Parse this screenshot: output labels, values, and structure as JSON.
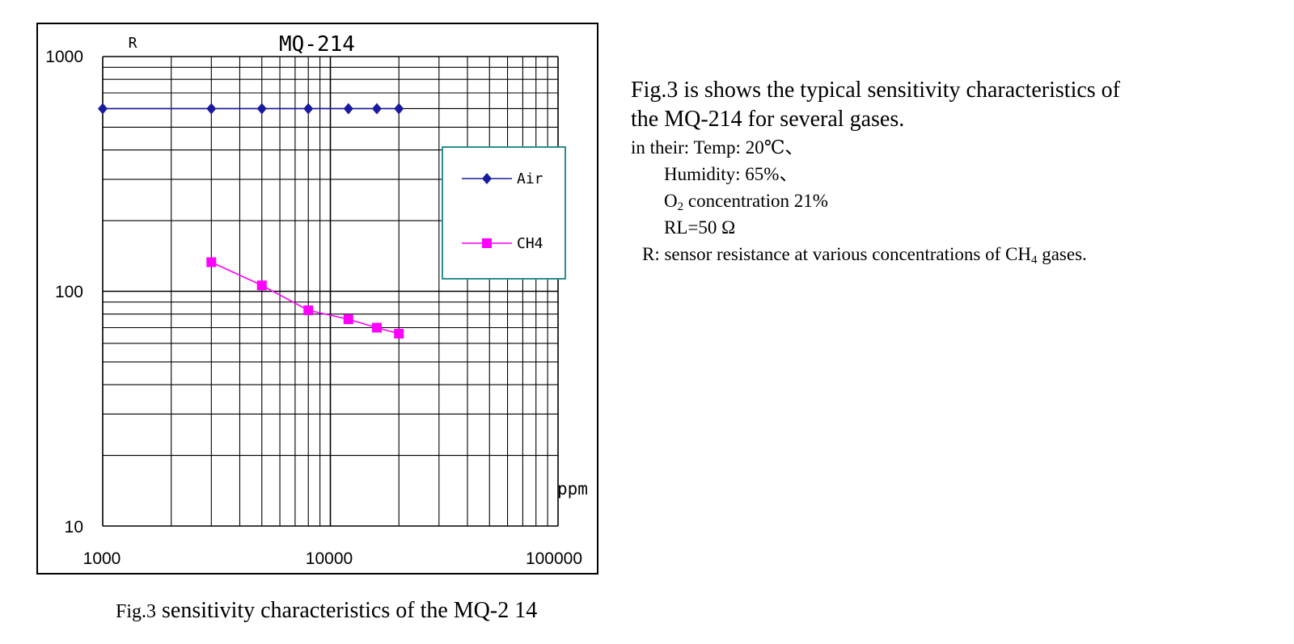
{
  "chart_data": {
    "type": "line",
    "title": "MQ-214",
    "ylabel": "R",
    "xlabel": "ppm",
    "x_scale": "log",
    "y_scale": "log",
    "xlim": [
      1000,
      100000
    ],
    "ylim": [
      10,
      1000
    ],
    "x_ticks": [
      "1000",
      "10000",
      "100000"
    ],
    "y_ticks": [
      "10",
      "100",
      "1000"
    ],
    "grid": true,
    "legend_position": "right",
    "series": [
      {
        "name": "Air",
        "color": "#1a1aa0",
        "marker": "diamond",
        "x": [
          1000,
          3000,
          5000,
          8000,
          12000,
          16000,
          20000
        ],
        "y": [
          600,
          600,
          600,
          600,
          600,
          600,
          600
        ]
      },
      {
        "name": "CH4",
        "color": "#ff00ff",
        "marker": "square",
        "x": [
          3000,
          5000,
          8000,
          12000,
          16000,
          20000
        ],
        "y": [
          133,
          106,
          83,
          76,
          70,
          66
        ]
      }
    ]
  },
  "description": {
    "line1": "Fig.3 is shows the typical sensitivity characteristics of",
    "line2": "the MQ-214 for several gases.",
    "conditions_intro": "in their: Temp: 20℃、",
    "humidity": "Humidity: 65%、",
    "o2_prefix": "O",
    "o2_sub": "2",
    "o2_suffix": " concentration 21%",
    "rl": "RL=50 Ω",
    "r_prefix": "R: sensor resistance at various concentrations of CH",
    "r_sub": "4",
    "r_suffix": " gases."
  },
  "caption": {
    "prefix": "Fig.3",
    "text": " sensitivity characteristics of the MQ-2 14"
  }
}
